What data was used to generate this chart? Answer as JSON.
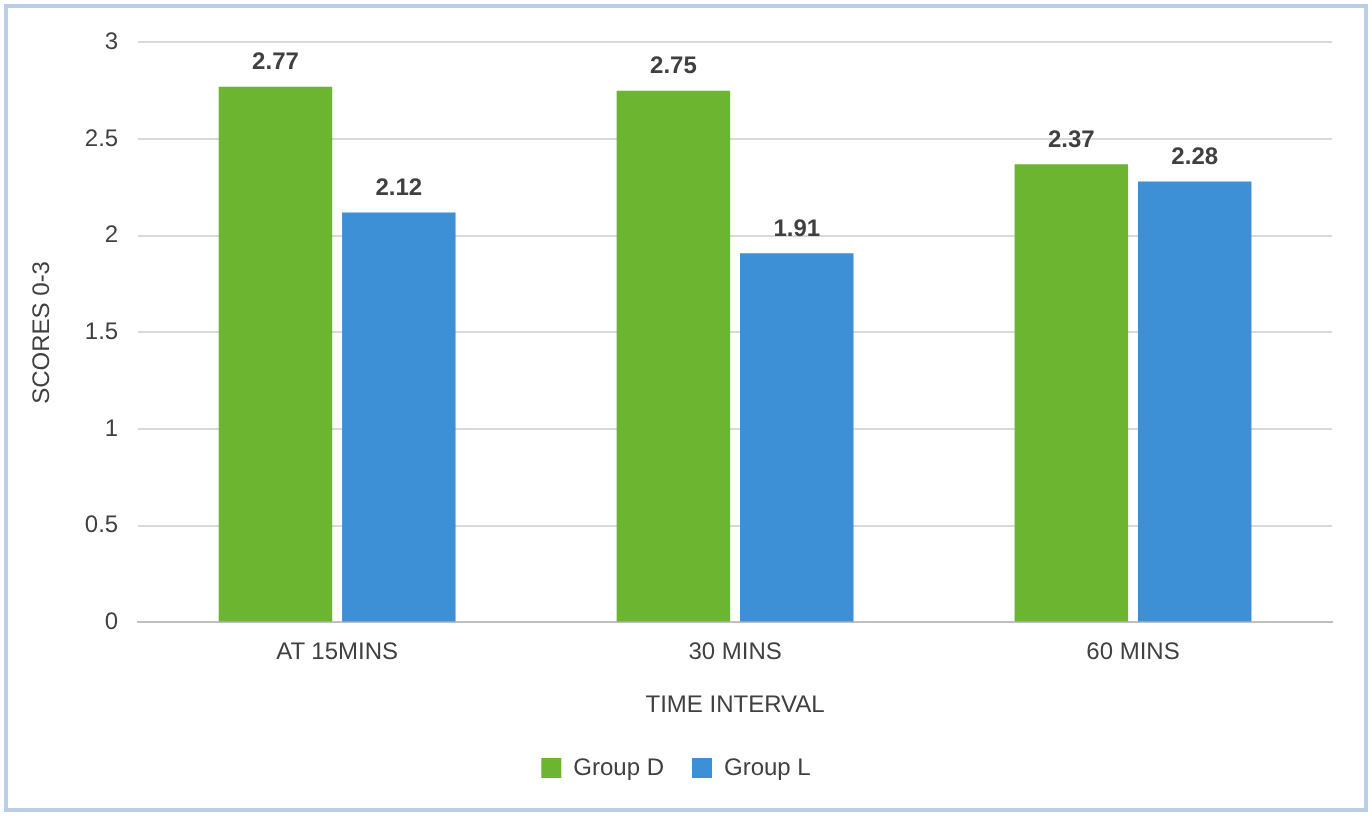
{
  "chart_data": {
    "type": "bar",
    "xlabel": "TIME INTERVAL",
    "ylabel": "SCORES 0-3",
    "categories": [
      "AT 15MINS",
      "30 MINS",
      "60 MINS"
    ],
    "series": [
      {
        "name": "Group D",
        "color": "#6cb531",
        "values": [
          2.77,
          2.75,
          2.37
        ]
      },
      {
        "name": "Group L",
        "color": "#3d8fd6",
        "values": [
          2.12,
          1.91,
          2.28
        ]
      }
    ],
    "ylim": [
      0,
      3
    ],
    "yticks": [
      0,
      0.5,
      1,
      1.5,
      2,
      2.5,
      3
    ],
    "grid": "y",
    "legend": "bottom",
    "data_labels": true
  }
}
